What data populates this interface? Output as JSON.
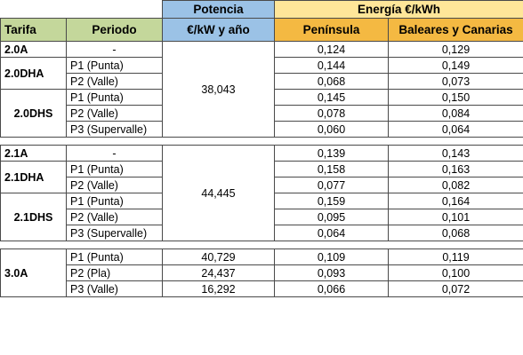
{
  "colors": {
    "header_green": "#c4d79b",
    "header_blue": "#9bc2e6",
    "header_energy_light": "#ffe699",
    "header_energy_dark": "#f4b942"
  },
  "header": {
    "potencia_label": "Potencia",
    "energia_label": "Energía €/kWh",
    "tarifa_label": "Tarifa",
    "periodo_label": "Periodo",
    "potencia_unit": "€/kW y año",
    "peninsula_label": "Península",
    "baleares_label": "Baleares y Canarias"
  },
  "groups": [
    {
      "potencia": "38,043",
      "tariffs": [
        {
          "name": "2.0A",
          "rows": [
            {
              "periodo": "-",
              "peninsula": "0,124",
              "baleares": "0,129"
            }
          ]
        },
        {
          "name": "2.0DHA",
          "rows": [
            {
              "periodo": "P1 (Punta)",
              "peninsula": "0,144",
              "baleares": "0,149"
            },
            {
              "periodo": "P2 (Valle)",
              "peninsula": "0,068",
              "baleares": "0,073"
            }
          ]
        },
        {
          "name": "2.0DHS",
          "rows": [
            {
              "periodo": "P1 (Punta)",
              "peninsula": "0,145",
              "baleares": "0,150"
            },
            {
              "periodo": "P2 (Valle)",
              "peninsula": "0,078",
              "baleares": "0,084"
            },
            {
              "periodo": "P3 (Supervalle)",
              "peninsula": "0,060",
              "baleares": "0,064"
            }
          ]
        }
      ]
    },
    {
      "potencia": "44,445",
      "tariffs": [
        {
          "name": "2.1A",
          "rows": [
            {
              "periodo": "-",
              "peninsula": "0,139",
              "baleares": "0,143"
            }
          ]
        },
        {
          "name": "2.1DHA",
          "rows": [
            {
              "periodo": "P1 (Punta)",
              "peninsula": "0,158",
              "baleares": "0,163"
            },
            {
              "periodo": "P2 (Valle)",
              "peninsula": "0,077",
              "baleares": "0,082"
            }
          ]
        },
        {
          "name": "2.1DHS",
          "rows": [
            {
              "periodo": "P1 (Punta)",
              "peninsula": "0,159",
              "baleares": "0,164"
            },
            {
              "periodo": "P2 (Valle)",
              "peninsula": "0,095",
              "baleares": "0,101"
            },
            {
              "periodo": "P3 (Supervalle)",
              "peninsula": "0,064",
              "baleares": "0,068"
            }
          ]
        }
      ]
    },
    {
      "tariffs": [
        {
          "name": "3.0A",
          "rows": [
            {
              "periodo": "P1 (Punta)",
              "potencia": "40,729",
              "peninsula": "0,109",
              "baleares": "0,119"
            },
            {
              "periodo": "P2 (Pla)",
              "potencia": "24,437",
              "peninsula": "0,093",
              "baleares": "0,100"
            },
            {
              "periodo": "P3 (Valle)",
              "potencia": "16,292",
              "peninsula": "0,066",
              "baleares": "0,072"
            }
          ]
        }
      ]
    }
  ]
}
